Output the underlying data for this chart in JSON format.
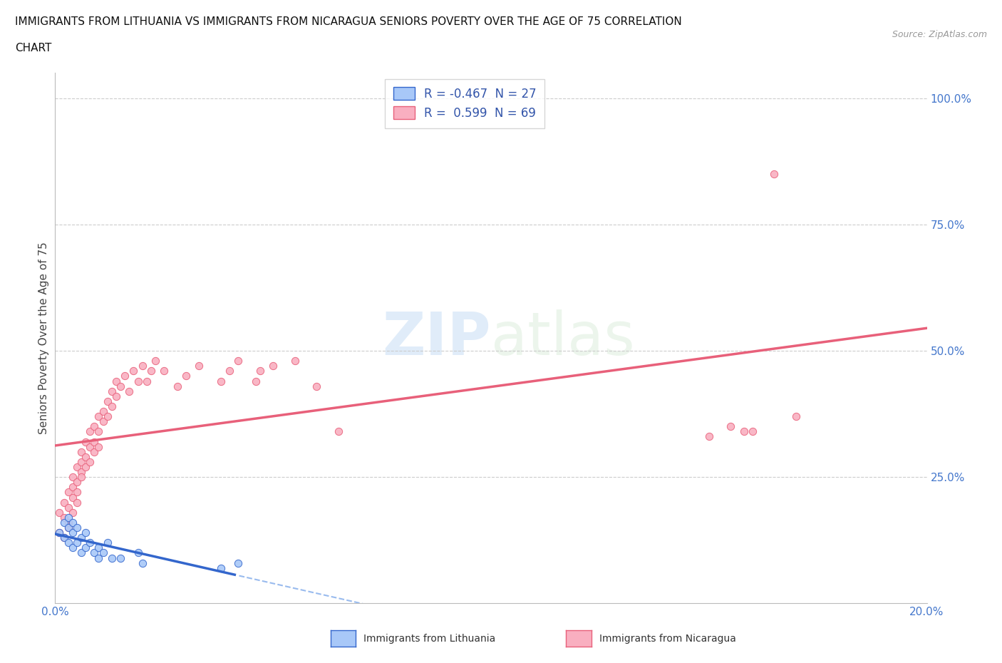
{
  "title_line1": "IMMIGRANTS FROM LITHUANIA VS IMMIGRANTS FROM NICARAGUA SENIORS POVERTY OVER THE AGE OF 75 CORRELATION",
  "title_line2": "CHART",
  "source_text": "Source: ZipAtlas.com",
  "ylabel": "Seniors Poverty Over the Age of 75",
  "R_lithuania": -0.467,
  "N_lithuania": 27,
  "R_nicaragua": 0.599,
  "N_nicaragua": 69,
  "color_lithuania": "#a8c8f8",
  "color_nicaragua": "#f9afc0",
  "line_color_lithuania": "#3366cc",
  "line_color_nicaragua": "#e8607a",
  "line_color_lithuania_dashed": "#99bbee",
  "background_color": "#ffffff",
  "xlim": [
    0.0,
    0.2
  ],
  "ylim": [
    0.0,
    1.0
  ],
  "lithuania_x": [
    0.001,
    0.002,
    0.002,
    0.003,
    0.003,
    0.003,
    0.004,
    0.004,
    0.004,
    0.005,
    0.005,
    0.006,
    0.006,
    0.007,
    0.007,
    0.008,
    0.009,
    0.01,
    0.01,
    0.011,
    0.012,
    0.013,
    0.015,
    0.019,
    0.02,
    0.038,
    0.042
  ],
  "lithuania_y": [
    0.14,
    0.16,
    0.13,
    0.17,
    0.15,
    0.12,
    0.16,
    0.14,
    0.11,
    0.15,
    0.12,
    0.13,
    0.1,
    0.14,
    0.11,
    0.12,
    0.1,
    0.09,
    0.11,
    0.1,
    0.12,
    0.09,
    0.09,
    0.1,
    0.08,
    0.07,
    0.08
  ],
  "nicaragua_x": [
    0.001,
    0.001,
    0.002,
    0.002,
    0.002,
    0.003,
    0.003,
    0.003,
    0.003,
    0.004,
    0.004,
    0.004,
    0.004,
    0.005,
    0.005,
    0.005,
    0.005,
    0.006,
    0.006,
    0.006,
    0.006,
    0.007,
    0.007,
    0.007,
    0.008,
    0.008,
    0.008,
    0.009,
    0.009,
    0.009,
    0.01,
    0.01,
    0.01,
    0.011,
    0.011,
    0.012,
    0.012,
    0.013,
    0.013,
    0.014,
    0.014,
    0.015,
    0.016,
    0.017,
    0.018,
    0.019,
    0.02,
    0.021,
    0.022,
    0.023,
    0.025,
    0.028,
    0.03,
    0.033,
    0.038,
    0.04,
    0.042,
    0.046,
    0.047,
    0.05,
    0.055,
    0.06,
    0.065,
    0.15,
    0.155,
    0.158,
    0.16,
    0.165,
    0.17
  ],
  "nicaragua_y": [
    0.14,
    0.18,
    0.13,
    0.2,
    0.17,
    0.15,
    0.22,
    0.19,
    0.16,
    0.21,
    0.18,
    0.25,
    0.23,
    0.2,
    0.27,
    0.24,
    0.22,
    0.26,
    0.3,
    0.28,
    0.25,
    0.32,
    0.29,
    0.27,
    0.34,
    0.31,
    0.28,
    0.35,
    0.32,
    0.3,
    0.37,
    0.34,
    0.31,
    0.38,
    0.36,
    0.4,
    0.37,
    0.42,
    0.39,
    0.44,
    0.41,
    0.43,
    0.45,
    0.42,
    0.46,
    0.44,
    0.47,
    0.44,
    0.46,
    0.48,
    0.46,
    0.43,
    0.45,
    0.47,
    0.44,
    0.46,
    0.48,
    0.44,
    0.46,
    0.47,
    0.48,
    0.43,
    0.34,
    0.33,
    0.35,
    0.34,
    0.34,
    0.85,
    0.37
  ]
}
